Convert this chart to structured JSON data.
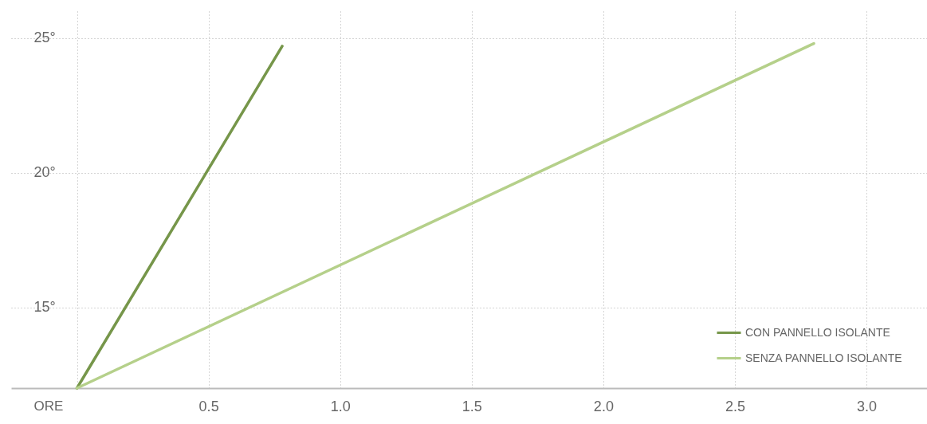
{
  "chart_data": {
    "type": "line",
    "xlabel": "ORE",
    "xlim": [
      -0.25,
      3.23
    ],
    "xticks": [
      {
        "value": 0,
        "label": null
      },
      0.5,
      {
        "value": 1,
        "label": "1.0"
      },
      1.5,
      {
        "value": 2,
        "label": "2.0"
      },
      2.5,
      {
        "value": 3,
        "label": "3.0"
      }
    ],
    "ylim": [
      12,
      26
    ],
    "yticks": [
      {
        "value": 15,
        "label": "15°"
      },
      {
        "value": 20,
        "label": "20°"
      },
      {
        "value": 25,
        "label": "25°"
      }
    ],
    "grid": true,
    "legend": "bottom right",
    "marker": "none",
    "line_style": "solid",
    "series": [
      {
        "name": "CON PANNELLO ISOLANTE",
        "color": "#76964a",
        "x": [
          0,
          0.78
        ],
        "values": [
          12,
          24.7
        ]
      },
      {
        "name": "SENZA PANNELLO ISOLANTE",
        "color": "#b5d08a",
        "x": [
          0,
          2.8
        ],
        "values": [
          12,
          24.8
        ]
      }
    ]
  }
}
